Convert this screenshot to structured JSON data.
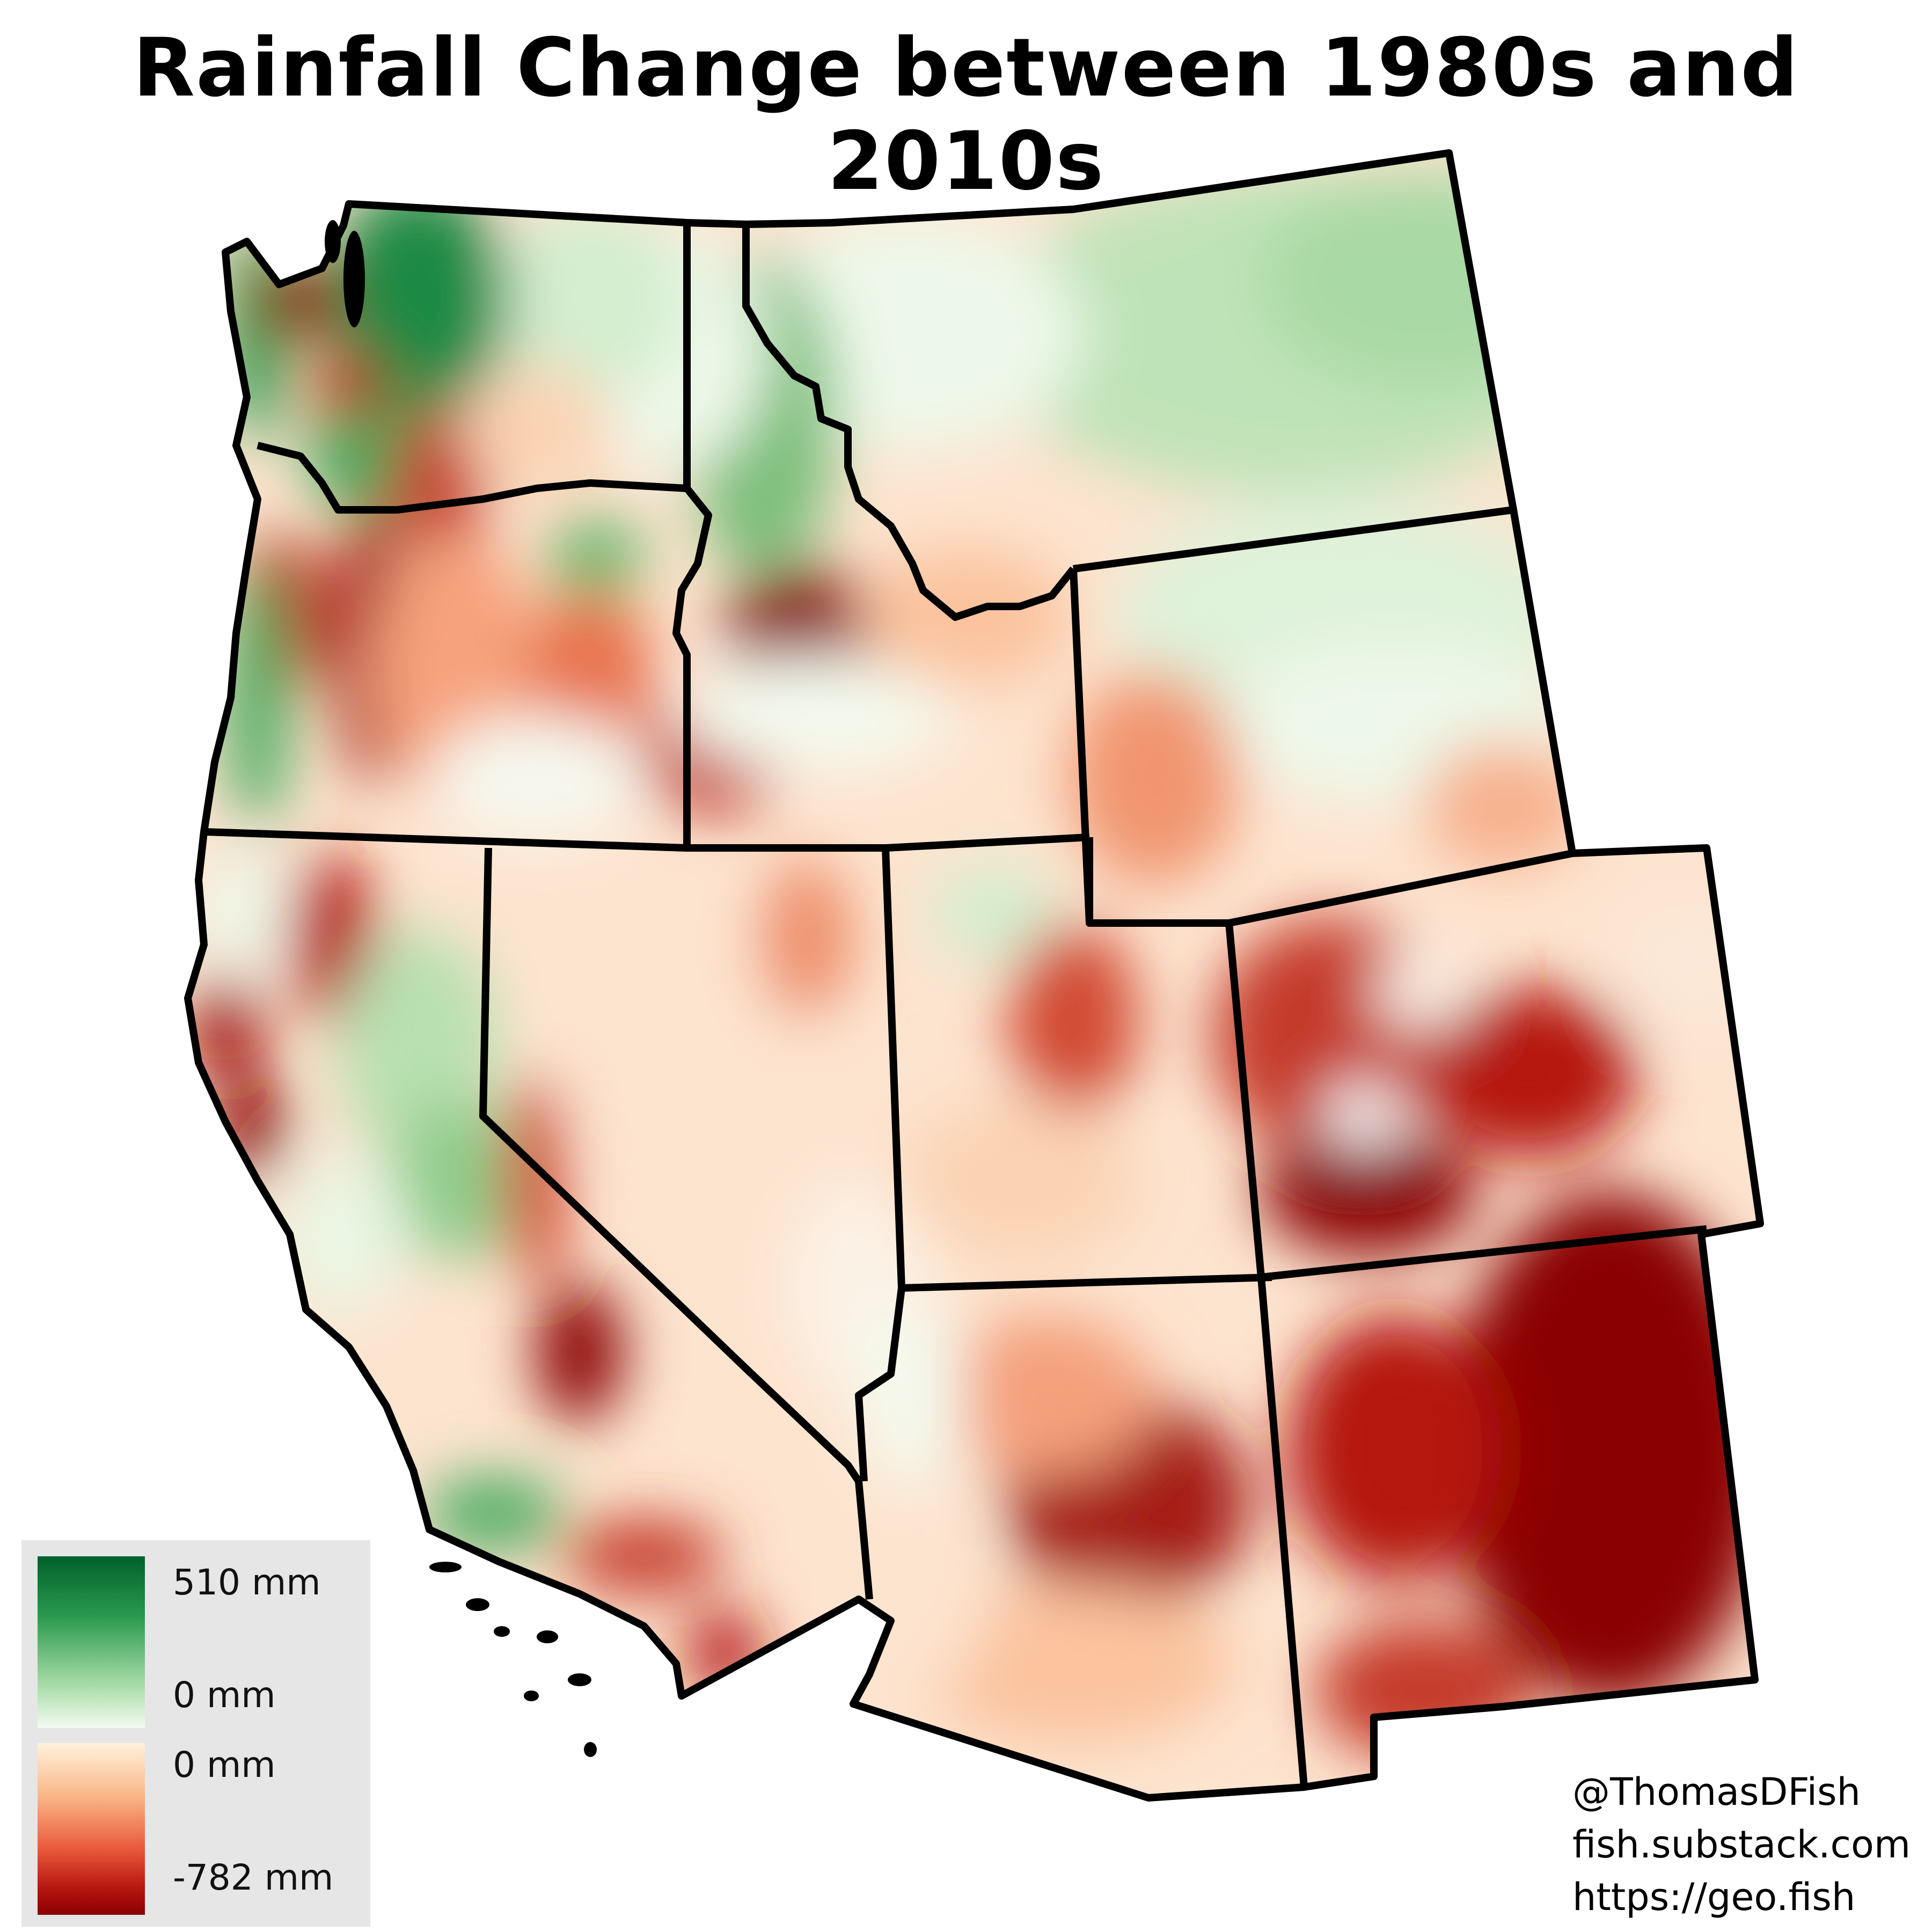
{
  "title": "Rainfall Change between 1980s and 2010s",
  "legend": {
    "increase_max": "510 mm",
    "increase_zero": "0 mm",
    "decrease_zero": "0 mm",
    "decrease_min": "-782 mm",
    "colors": {
      "max_increase": "#00602a",
      "neutral_green": "#f3fbf0",
      "neutral_red": "#fff1dc",
      "max_decrease": "#8a0000"
    }
  },
  "credits": {
    "twitter": "@ThomasDFish",
    "substack": "fish.substack.com",
    "website": "https://geo.fish"
  },
  "map": {
    "region": "Western United States",
    "states": [
      "Washington",
      "Oregon",
      "California",
      "Idaho",
      "Nevada",
      "Montana",
      "Wyoming",
      "Utah",
      "Colorado",
      "Arizona",
      "New Mexico"
    ],
    "dominant_change": {
      "Washington": "mixed, strong increase along coast and Cascades",
      "Oregon": "mostly decrease, increase on coast",
      "California": "mixed, decrease in north coast and Sierra",
      "Idaho": "increase in north, decrease in south",
      "Nevada": "slight decrease",
      "Montana": "increase",
      "Wyoming": "increase in north, decrease in southwest",
      "Utah": "moderate decrease",
      "Colorado": "strong decrease",
      "Arizona": "moderate to strong decrease",
      "New Mexico": "strongest decrease"
    }
  }
}
